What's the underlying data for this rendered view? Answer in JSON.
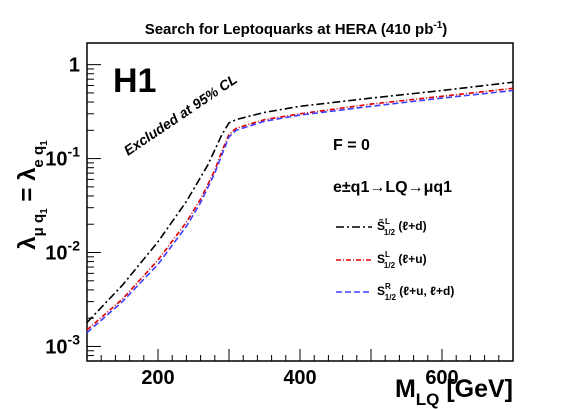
{
  "chart_data": {
    "type": "line",
    "title": {
      "text": "Search for Leptoquarks at HERA (410 pb",
      "sup": "-1",
      "tail": ")"
    },
    "logo": "H1",
    "excluded_label": "Excluded at 95% CL",
    "fermion_number_label": "F = 0",
    "process_label": "e±q1→LQ→μq1",
    "xlabel": {
      "main": "M",
      "sub": "LQ",
      "tail": " [GeV]"
    },
    "ylabel": {
      "lambda1": "λ",
      "sub1": "μ q",
      "sub1b": "1",
      "eq": " = λ",
      "sub2": "e q",
      "sub2b": "1"
    },
    "xlim": [
      100,
      700
    ],
    "ylim": [
      0.0007,
      1.7
    ],
    "yscale": "log",
    "x_ticks": [
      200,
      400,
      600
    ],
    "y_ticks": [
      {
        "value": 0.001,
        "base": "10",
        "exp": "-3"
      },
      {
        "value": 0.01,
        "base": "10",
        "exp": "-2"
      },
      {
        "value": 0.1,
        "base": "10",
        "exp": "-1"
      },
      {
        "value": 1,
        "base": "1",
        "exp": ""
      }
    ],
    "series": [
      {
        "name": "S̃L1/2 (ℓ+d)",
        "legend": {
          "S": "S̃",
          "sup": "L",
          "sub": "1/2",
          "text": " (ℓ+d)"
        },
        "color": "#000000",
        "dash": "8,3,2,3",
        "x": [
          100,
          150,
          200,
          240,
          270,
          290,
          300,
          310,
          350,
          400,
          500,
          600,
          700
        ],
        "y": [
          0.0018,
          0.0045,
          0.013,
          0.035,
          0.085,
          0.18,
          0.24,
          0.26,
          0.31,
          0.36,
          0.44,
          0.53,
          0.65
        ]
      },
      {
        "name": "SL1/2 (ℓ+u)",
        "legend": {
          "S": "S",
          "sup": "L",
          "sub": "1/2",
          "text": " (ℓ+u)"
        },
        "color": "#e00000",
        "dash": "5,2,1,2",
        "x": [
          100,
          150,
          200,
          240,
          260,
          280,
          290,
          300,
          310,
          350,
          400,
          500,
          600,
          700
        ],
        "y": [
          0.0015,
          0.0032,
          0.0083,
          0.021,
          0.037,
          0.075,
          0.12,
          0.18,
          0.21,
          0.26,
          0.3,
          0.38,
          0.46,
          0.56
        ]
      },
      {
        "name": "SR1/2 (ℓ+u, ℓ+d)",
        "legend": {
          "S": "S",
          "sup": "R",
          "sub": "1/2",
          "text": " (ℓ+u, ℓ+d)"
        },
        "color": "#4040ff",
        "dash": "6,3",
        "x": [
          100,
          150,
          200,
          240,
          260,
          280,
          290,
          300,
          310,
          350,
          400,
          500,
          600,
          700
        ],
        "y": [
          0.0014,
          0.003,
          0.0075,
          0.019,
          0.034,
          0.07,
          0.11,
          0.17,
          0.2,
          0.25,
          0.29,
          0.36,
          0.44,
          0.53
        ]
      }
    ]
  }
}
